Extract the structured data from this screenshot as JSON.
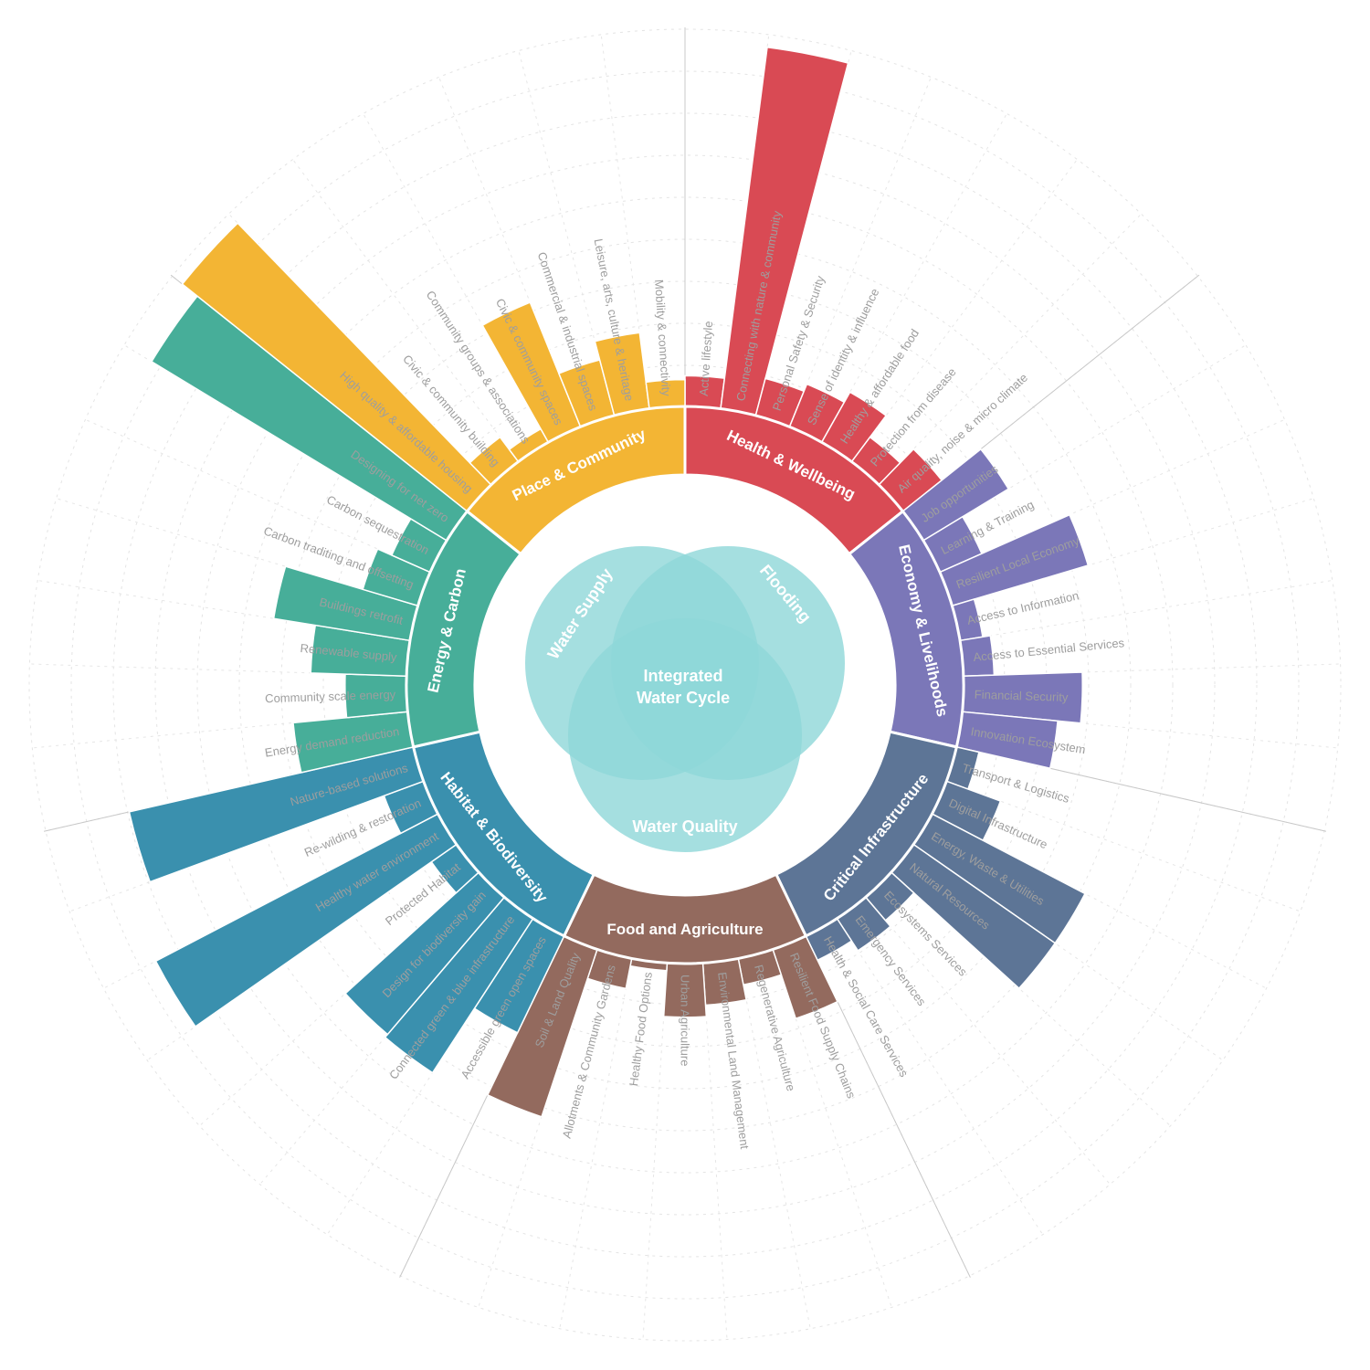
{
  "chart_data": {
    "type": "radial-bar",
    "center_label": [
      "Integrated",
      "Water Cycle"
    ],
    "venn": [
      {
        "label": "Water Supply",
        "color": "#8fd7d8"
      },
      {
        "label": "Flooding",
        "color": "#8fd7d8"
      },
      {
        "label": "Water Quality",
        "color": "#8fd7d8"
      }
    ],
    "categories": [
      {
        "name": "Health & Wellbeing",
        "color": "#d94a54",
        "items": [
          {
            "label": "Active lifestyle",
            "value": 0.8
          },
          {
            "label": "Connecting with nature & community",
            "value": 9.5
          },
          {
            "label": "Personal Safety & Security",
            "value": 1.0
          },
          {
            "label": "Sense of identity & influence",
            "value": 1.2
          },
          {
            "label": "Healthy & affordable food",
            "value": 1.5
          },
          {
            "label": "Protection from disease",
            "value": 0.8
          },
          {
            "label": "Air quality, noise & micro climate",
            "value": 1.3
          }
        ]
      },
      {
        "name": "Economy & Livelihoods",
        "color": "#7b77b8",
        "items": [
          {
            "label": "Job opportunities",
            "value": 2.6
          },
          {
            "label": "Learning & Training",
            "value": 1.2
          },
          {
            "label": "Resilient Local Economy",
            "value": 3.7
          },
          {
            "label": "Access to Information",
            "value": 0.6
          },
          {
            "label": "Access to Essential Services",
            "value": 0.8
          },
          {
            "label": "Financial Security",
            "value": 3.1
          },
          {
            "label": "Innovation Ecosystem",
            "value": 2.5
          }
        ]
      },
      {
        "name": "Critical Infrastructure",
        "color": "#5d7596",
        "items": [
          {
            "label": "Transport & Logistics",
            "value": 0.6
          },
          {
            "label": "Digital Infrastructure",
            "value": 1.5
          },
          {
            "label": "Energy, Waste & Utilities",
            "value": 4.5
          },
          {
            "label": "Natural Resources",
            "value": 4.5
          },
          {
            "label": "Ecosystems Services",
            "value": 0.8
          },
          {
            "label": "Emergency Services",
            "value": 1.0
          },
          {
            "label": "Health & Social Care Services",
            "value": 0.7
          }
        ]
      },
      {
        "name": "Food and Agriculture",
        "color": "#936a5e",
        "items": [
          {
            "label": "Resilient Food Supply Chains",
            "value": 1.9
          },
          {
            "label": "Regenerative Agriculture",
            "value": 0.7
          },
          {
            "label": "Environmental Land Management",
            "value": 1.1
          },
          {
            "label": "Urban Agriculture",
            "value": 1.4
          },
          {
            "label": "Healthy Food Options",
            "value": 0.2
          },
          {
            "label": "Allotments & Community Gardens",
            "value": 0.8
          },
          {
            "label": "Soil & Land Quality",
            "value": 4.6
          }
        ]
      },
      {
        "name": "Habitat & Biodiversity",
        "color": "#3a90ae",
        "items": [
          {
            "label": "Accessible green open spaces",
            "value": 2.8
          },
          {
            "label": "Connected green & blue infrastructure",
            "value": 4.8
          },
          {
            "label": "Design for biodiversity gain",
            "value": 4.7
          },
          {
            "label": "Protected Habitat",
            "value": 0.8
          },
          {
            "label": "Healthy water environment",
            "value": 8.3
          },
          {
            "label": "Re-wilding & restoration",
            "value": 1.1
          },
          {
            "label": "Nature-based solutions",
            "value": 7.6
          }
        ]
      },
      {
        "name": "Energy & Carbon",
        "color": "#47ae99",
        "items": [
          {
            "label": "Energy demand reduction",
            "value": 3.0
          },
          {
            "label": "Community scale energy",
            "value": 1.6
          },
          {
            "label": "Renewable supply",
            "value": 2.5
          },
          {
            "label": "Buildings retrofit",
            "value": 3.6
          },
          {
            "label": "Carbon traditing and offsetting",
            "value": 1.5
          },
          {
            "label": "Carbon sequestration",
            "value": 1.1
          },
          {
            "label": "Designing for net zero",
            "value": 9.0
          }
        ]
      },
      {
        "name": "Place & Community",
        "color": "#f3b534",
        "items": [
          {
            "label": "High quality & affordable housing",
            "value": 9.5
          },
          {
            "label": "Civic & community building",
            "value": 0.8
          },
          {
            "label": "Community groups & associations",
            "value": 0.4
          },
          {
            "label": "Civic & community spaces",
            "value": 3.5
          },
          {
            "label": "Commercial & industrial spaces",
            "value": 1.5
          },
          {
            "label": "Leisure, arts, culture & heritage",
            "value": 2.0
          },
          {
            "label": "Mobility & connectivity",
            "value": 0.7
          }
        ]
      }
    ]
  }
}
